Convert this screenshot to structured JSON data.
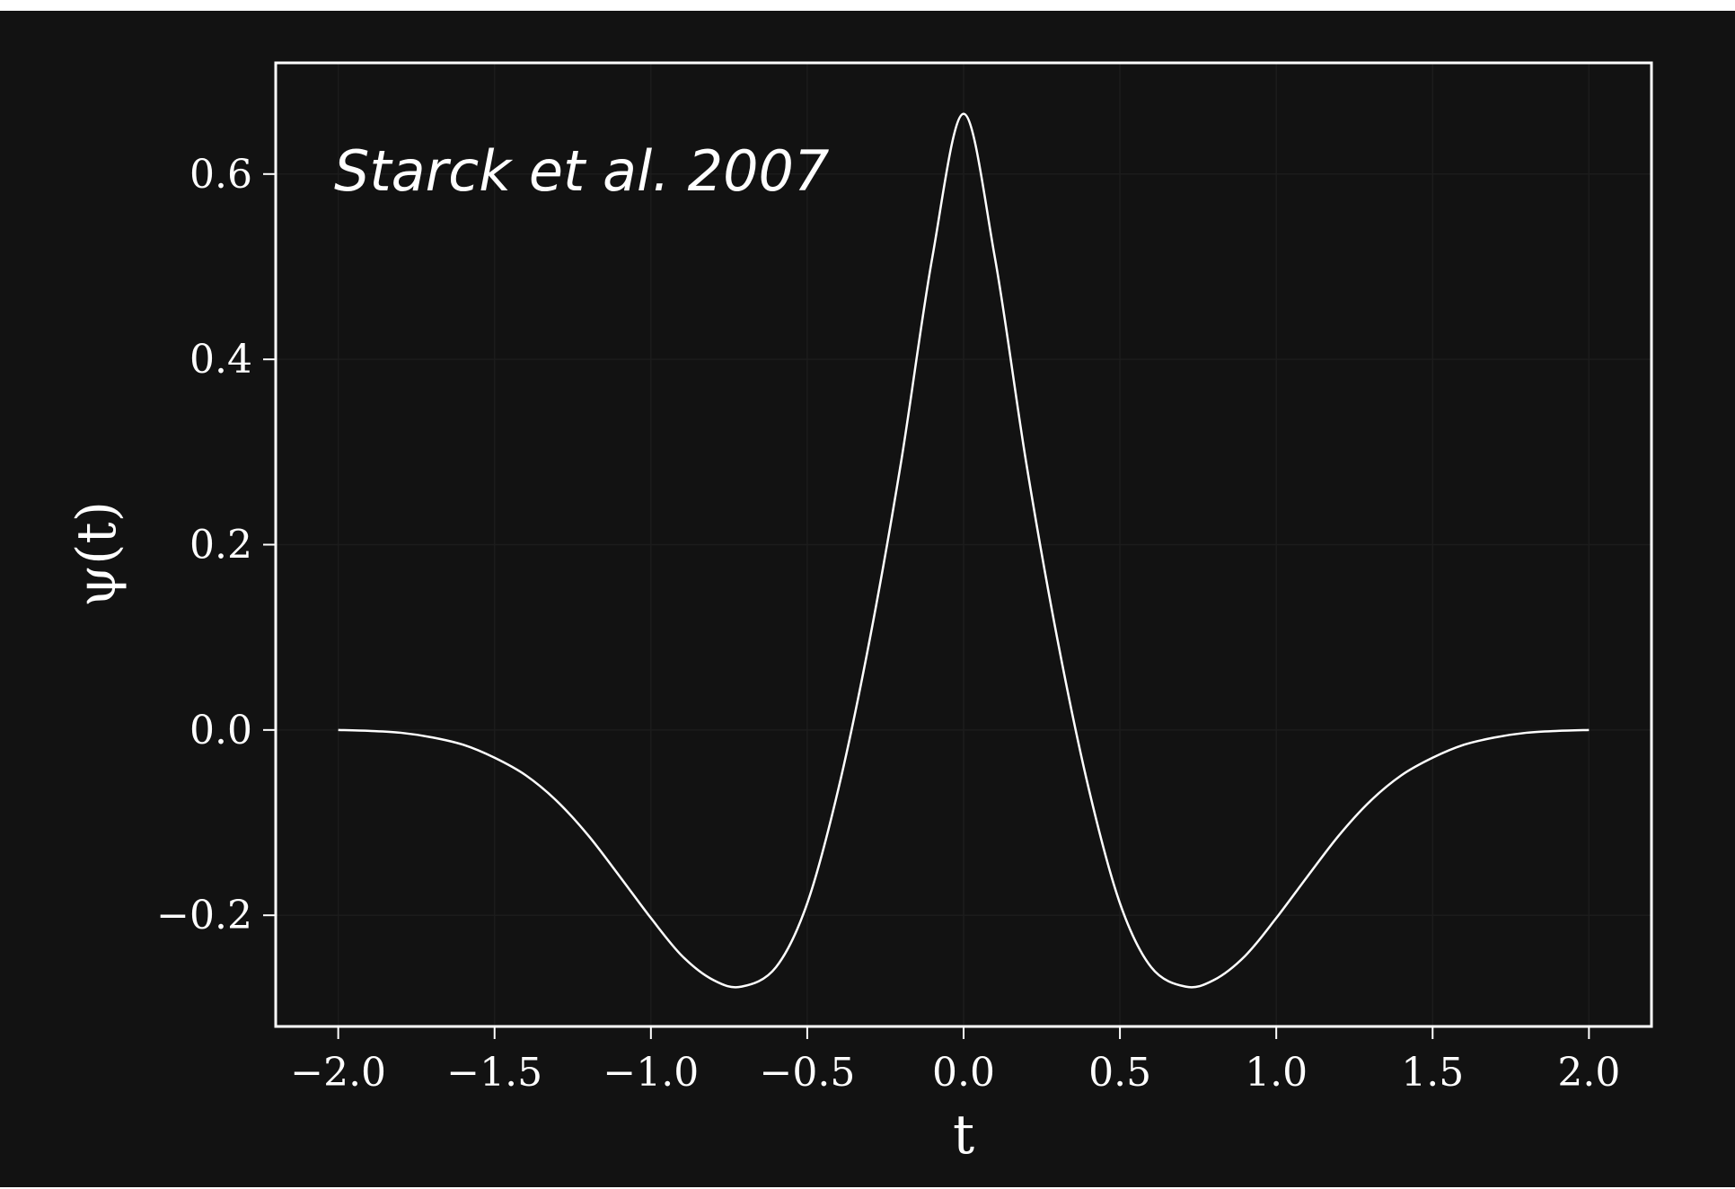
{
  "chart_data": {
    "type": "line",
    "xlabel": "t",
    "ylabel": "ψ(t)",
    "annotation": "Starck et al. 2007",
    "xlim": [
      -2.2,
      2.2
    ],
    "ylim": [
      -0.32,
      0.72
    ],
    "x_ticks": [
      -2.0,
      -1.5,
      -1.0,
      -0.5,
      0.0,
      0.5,
      1.0,
      1.5,
      2.0
    ],
    "y_ticks": [
      -0.2,
      0.0,
      0.2,
      0.4,
      0.6
    ],
    "x_tick_labels": [
      "−2.0",
      "−1.5",
      "−1.0",
      "−0.5",
      "0.0",
      "0.5",
      "1.0",
      "1.5",
      "2.0"
    ],
    "y_tick_labels": [
      "−0.2",
      "0.0",
      "0.2",
      "0.4",
      "0.6"
    ],
    "grid": true,
    "line_color": "#ffffff",
    "background_color": "#121212",
    "series": [
      {
        "x": [
          -2.0,
          -1.9,
          -1.8,
          -1.7,
          -1.6,
          -1.5,
          -1.4,
          -1.3,
          -1.2,
          -1.1,
          -1.0,
          -0.9,
          -0.8,
          -0.71,
          -0.6,
          -0.5,
          -0.4,
          -0.3,
          -0.2,
          -0.1,
          0.0,
          0.1,
          0.2,
          0.3,
          0.4,
          0.5,
          0.6,
          0.71,
          0.8,
          0.9,
          1.0,
          1.1,
          1.2,
          1.3,
          1.4,
          1.5,
          1.6,
          1.7,
          1.8,
          1.9,
          2.0
        ],
        "values": [
          0.0,
          -0.001,
          -0.003,
          -0.008,
          -0.016,
          -0.03,
          -0.049,
          -0.077,
          -0.114,
          -0.158,
          -0.203,
          -0.244,
          -0.27,
          -0.277,
          -0.256,
          -0.187,
          -0.063,
          0.098,
          0.289,
          0.51,
          0.665,
          0.51,
          0.289,
          0.098,
          -0.063,
          -0.187,
          -0.256,
          -0.277,
          -0.27,
          -0.244,
          -0.203,
          -0.158,
          -0.114,
          -0.077,
          -0.049,
          -0.03,
          -0.016,
          -0.008,
          -0.003,
          -0.001,
          0.0
        ]
      }
    ]
  }
}
